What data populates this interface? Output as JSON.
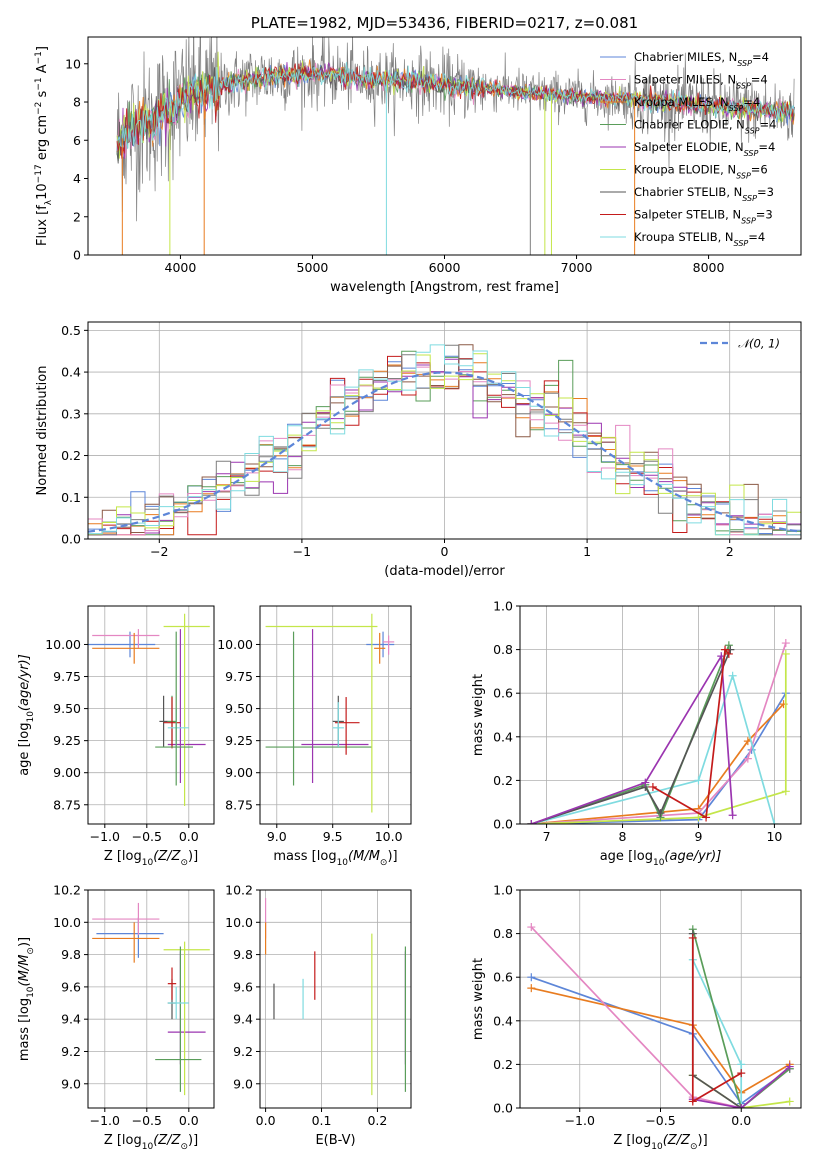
{
  "palette": [
    "#5d86d8",
    "#e87c20",
    "#5a9d5a",
    "#c41b1b",
    "#9b35b0",
    "#8c5a46",
    "#e487c2",
    "#7f7f7f",
    "#c4e64a",
    "#7fdbe0"
  ],
  "chart_data": [
    {
      "id": "spectrum",
      "type": "line",
      "title": "PLATE=1982, MJD=53436, FIBERID=0217, z=0.081",
      "xlabel": "wavelength [Angstrom, rest frame]",
      "ylabel": "Flux [f",
      "ylabel_sub": "λ",
      "ylabel_rest": "10",
      "ylabel_sup1": "−17",
      "ylabel_mid": " erg cm",
      "ylabel_sup2": "−2",
      "ylabel_mid2": " s",
      "ylabel_sup3": "−1",
      "ylabel_end": " A",
      "ylabel_sup4": "−1",
      "ylabel_close": "]",
      "xlim": [
        3300,
        8700
      ],
      "ylim": [
        0,
        11.4
      ],
      "xticks": [
        "4000",
        "5000",
        "6000",
        "7000",
        "8000"
      ],
      "yticks": [
        "0",
        "2",
        "4",
        "6",
        "8",
        "10"
      ],
      "grid": false,
      "legend_position": "top-right",
      "continuum": {
        "x": [
          3520,
          3600,
          3700,
          3800,
          3900,
          4000,
          4100,
          4200,
          4300,
          4400,
          4500,
          4600,
          4800,
          5000,
          5200,
          5400,
          5600,
          5800,
          6000,
          6200,
          6400,
          6600,
          6800,
          7000,
          7200,
          7400,
          7600,
          7800,
          8000,
          8200,
          8400,
          8650
        ],
        "y": [
          5.8,
          6.4,
          6.8,
          7.0,
          7.6,
          8.0,
          8.4,
          8.5,
          8.7,
          9.0,
          9.2,
          9.3,
          9.4,
          9.5,
          9.4,
          9.2,
          9.1,
          9.1,
          8.9,
          8.8,
          8.7,
          8.5,
          8.4,
          8.3,
          8.2,
          8.2,
          8.0,
          7.9,
          7.8,
          7.7,
          7.6,
          7.4
        ]
      },
      "series": [
        {
          "name": "Chabrier MILES, N",
          "sub": "SSP",
          "suffix": "=4",
          "color": "#5d86d8"
        },
        {
          "name": "Salpeter MILES, N",
          "sub": "SSP",
          "suffix": "=4",
          "color": "#e487c2"
        },
        {
          "name": "Kroupa MILES, N",
          "sub": "SSP",
          "suffix": "=4",
          "color": "#e87c20"
        },
        {
          "name": "Chabrier ELODIE, N",
          "sub": "SSP",
          "suffix": "=4",
          "color": "#5a9d5a"
        },
        {
          "name": "Salpeter ELODIE, N",
          "sub": "SSP",
          "suffix": "=4",
          "color": "#9b35b0"
        },
        {
          "name": "Kroupa ELODIE, N",
          "sub": "SSP",
          "suffix": "=6",
          "color": "#c4e64a"
        },
        {
          "name": "Chabrier STELIB, N",
          "sub": "SSP",
          "suffix": "=3",
          "color": "#555555"
        },
        {
          "name": "Salpeter STELIB, N",
          "sub": "SSP",
          "suffix": "=3",
          "color": "#c41b1b"
        },
        {
          "name": "Kroupa STELIB, N",
          "sub": "SSP",
          "suffix": "=4",
          "color": "#7fdbe0"
        }
      ]
    },
    {
      "id": "residuals",
      "type": "histogram",
      "xlabel": "(data-model)/error",
      "ylabel": "Normed distribution",
      "xlim": [
        -2.5,
        2.5
      ],
      "ylim": [
        0,
        0.52
      ],
      "xticks": [
        "−2",
        "−1",
        "0",
        "1",
        "2"
      ],
      "yticks": [
        "0.0",
        "0.1",
        "0.2",
        "0.3",
        "0.4",
        "0.5"
      ],
      "grid": true,
      "legend": "𝒩(0, 1)",
      "legend_position": "top-right",
      "bin_width": 0.1
    },
    {
      "id": "age_vs_Z",
      "type": "errorbar",
      "xlabel": "Z [log",
      "xlabel_sub": "10",
      "xlabel_rest": "(Z/Z",
      "xlabel_sun": "⊙",
      "xlabel_close": ")]",
      "ylabel": "age  [log",
      "ylabel_sub": "10",
      "ylabel_rest": "(age/yr)]",
      "xlim": [
        -1.2,
        0.3
      ],
      "ylim": [
        8.6,
        10.3
      ],
      "xticks": [
        "−1.0",
        "−0.5",
        "0.0"
      ],
      "yticks": [
        "8.75",
        "9.00",
        "9.25",
        "9.50",
        "9.75",
        "10.00"
      ],
      "grid": true,
      "points": [
        {
          "x": -0.7,
          "y": 10.0,
          "xerr": [
            0.5,
            0.3
          ],
          "yerr": [
            0.1,
            0.1
          ],
          "c": "#5d86d8"
        },
        {
          "x": -0.6,
          "y": 10.07,
          "xerr": [
            0.55,
            0.25
          ],
          "yerr": [
            0.1,
            0.05
          ],
          "c": "#e487c2"
        },
        {
          "x": -0.65,
          "y": 9.97,
          "xerr": [
            0.5,
            0.3
          ],
          "yerr": [
            0.12,
            0.12
          ],
          "c": "#e87c20"
        },
        {
          "x": -0.2,
          "y": 9.4,
          "xerr": [
            0.05,
            0.05
          ],
          "yerr": [
            0.2,
            0.2
          ],
          "c": "#5a9d5a"
        },
        {
          "x": -0.1,
          "y": 9.22,
          "xerr": [
            0.15,
            0.3
          ],
          "yerr": [
            0.3,
            0.9
          ],
          "c": "#9b35b0"
        },
        {
          "x": -0.05,
          "y": 10.14,
          "xerr": [
            0.25,
            0.3
          ],
          "yerr": [
            1.4,
            0.1
          ],
          "c": "#c4e64a"
        },
        {
          "x": -0.3,
          "y": 9.4,
          "xerr": [
            0.05,
            0.05
          ],
          "yerr": [
            0.2,
            0.2
          ],
          "c": "#555555"
        },
        {
          "x": -0.2,
          "y": 9.39,
          "xerr": [
            0.1,
            0.1
          ],
          "yerr": [
            0.2,
            0.2
          ],
          "c": "#c41b1b"
        },
        {
          "x": -0.15,
          "y": 9.35,
          "xerr": [
            0.1,
            0.15
          ],
          "yerr": [
            0.15,
            0.15
          ],
          "c": "#7fdbe0"
        },
        {
          "x": -0.15,
          "y": 9.2,
          "xerr": [
            0.25,
            0.2
          ],
          "yerr": [
            0.3,
            0.9
          ],
          "c": "#5a9d5a"
        }
      ]
    },
    {
      "id": "age_vs_mass",
      "type": "errorbar",
      "xlabel": "mass [log",
      "xlabel_sub": "10",
      "xlabel_rest": "(M/M",
      "xlabel_sun": "⊙",
      "xlabel_close": ")]",
      "xlim": [
        8.85,
        10.2
      ],
      "ylim": [
        8.6,
        10.3
      ],
      "xticks": [
        "9.0",
        "9.5",
        "10.0"
      ],
      "yticks": [
        "8.75",
        "9.00",
        "9.25",
        "9.50",
        "9.75",
        "10.00"
      ],
      "grid": true,
      "points": [
        {
          "x": 9.95,
          "y": 10.0,
          "xerr": [
            0.15,
            0.1
          ],
          "yerr": [
            0.1,
            0.1
          ],
          "c": "#5d86d8"
        },
        {
          "x": 10.0,
          "y": 10.02,
          "xerr": [
            0.05,
            0.05
          ],
          "yerr": [
            0.1,
            0.05
          ],
          "c": "#e487c2"
        },
        {
          "x": 9.92,
          "y": 9.97,
          "xerr": [
            0.05,
            0.05
          ],
          "yerr": [
            0.12,
            0.12
          ],
          "c": "#e87c20"
        },
        {
          "x": 9.15,
          "y": 9.2,
          "xerr": [
            0.25,
            0.7
          ],
          "yerr": [
            0.3,
            0.9
          ],
          "c": "#5a9d5a"
        },
        {
          "x": 9.32,
          "y": 9.22,
          "xerr": [
            0.1,
            0.5
          ],
          "yerr": [
            0.3,
            0.9
          ],
          "c": "#9b35b0"
        },
        {
          "x": 9.85,
          "y": 10.14,
          "xerr": [
            0.95,
            0.05
          ],
          "yerr": [
            1.45,
            0.1
          ],
          "c": "#c4e64a"
        },
        {
          "x": 9.55,
          "y": 9.4,
          "xerr": [
            0.05,
            0.05
          ],
          "yerr": [
            0.2,
            0.2
          ],
          "c": "#555555"
        },
        {
          "x": 9.62,
          "y": 9.39,
          "xerr": [
            0.1,
            0.12
          ],
          "yerr": [
            0.25,
            0.2
          ],
          "c": "#c41b1b"
        },
        {
          "x": 9.55,
          "y": 9.35,
          "xerr": [
            0.05,
            0.05
          ],
          "yerr": [
            0.15,
            0.2
          ],
          "c": "#7fdbe0"
        }
      ]
    },
    {
      "id": "weights_vs_age",
      "type": "line",
      "xlabel": "age  [log",
      "xlabel_sub": "10",
      "xlabel_rest": "(age/yr)]",
      "ylabel": "mass weight",
      "xlim": [
        6.65,
        10.35
      ],
      "ylim": [
        0,
        1
      ],
      "xticks": [
        "7",
        "8",
        "9",
        "10"
      ],
      "yticks": [
        "0.0",
        "0.2",
        "0.4",
        "0.6",
        "0.8",
        "1.0"
      ],
      "grid": true,
      "series": [
        {
          "c": "#5d86d8",
          "x": [
            6.8,
            9.0,
            9.7,
            10.15
          ],
          "y": [
            0.0,
            0.02,
            0.34,
            0.6
          ]
        },
        {
          "c": "#e87c20",
          "x": [
            6.8,
            9.0,
            9.65,
            10.12
          ],
          "y": [
            0.0,
            0.07,
            0.38,
            0.55
          ]
        },
        {
          "c": "#e487c2",
          "x": [
            6.8,
            9.0,
            9.65,
            10.15
          ],
          "y": [
            0.0,
            0.05,
            0.3,
            0.83
          ]
        },
        {
          "c": "#c4e64a",
          "x": [
            6.8,
            9.0,
            10.15,
            10.15
          ],
          "y": [
            0.0,
            0.03,
            0.15,
            0.78
          ]
        },
        {
          "c": "#7fdbe0",
          "x": [
            6.8,
            9.0,
            9.45,
            10.0
          ],
          "y": [
            0.0,
            0.2,
            0.68,
            0.0
          ]
        },
        {
          "c": "#5a9d5a",
          "x": [
            6.8,
            8.3,
            8.5,
            9.4
          ],
          "y": [
            0.0,
            0.18,
            0.03,
            0.82
          ]
        },
        {
          "c": "#555555",
          "x": [
            6.8,
            8.3,
            8.5,
            9.42
          ],
          "y": [
            0.0,
            0.17,
            0.05,
            0.8
          ]
        },
        {
          "c": "#9b35b0",
          "x": [
            6.8,
            8.3,
            9.3,
            9.45
          ],
          "y": [
            0.0,
            0.19,
            0.77,
            0.04
          ]
        },
        {
          "c": "#c41b1b",
          "x": [
            8.4,
            9.1,
            9.35,
            9.4
          ],
          "y": [
            0.17,
            0.03,
            0.8,
            0.78
          ]
        }
      ]
    },
    {
      "id": "mass_vs_Z",
      "type": "errorbar",
      "xlabel": "Z [log",
      "xlabel_sub": "10",
      "xlabel_rest": "(Z/Z",
      "xlabel_sun": "⊙",
      "xlabel_close": ")]",
      "ylabel": "mass [log",
      "ylabel_sub": "10",
      "ylabel_rest": "(M/M",
      "ylabel_sun": "⊙",
      "ylabel_close": ")]",
      "xlim": [
        -1.2,
        0.3
      ],
      "ylim": [
        8.85,
        10.2
      ],
      "xticks": [
        "−1.0",
        "−0.5",
        "0.0"
      ],
      "yticks": [
        "9.0",
        "9.2",
        "9.4",
        "9.6",
        "9.8",
        "10.0",
        "10.2"
      ],
      "grid": true,
      "points": [
        {
          "x": -0.6,
          "y": 9.93,
          "xerr": [
            0.5,
            0.3
          ],
          "yerr": [
            0.15,
            0.1
          ],
          "c": "#5d86d8"
        },
        {
          "x": -0.6,
          "y": 10.02,
          "xerr": [
            0.55,
            0.25
          ],
          "yerr": [
            0.1,
            0.1
          ],
          "c": "#e487c2"
        },
        {
          "x": -0.65,
          "y": 9.9,
          "xerr": [
            0.5,
            0.3
          ],
          "yerr": [
            0.15,
            0.1
          ],
          "c": "#e87c20"
        },
        {
          "x": -0.2,
          "y": 9.5,
          "xerr": [
            0.05,
            0.05
          ],
          "yerr": [
            0.1,
            0.15
          ],
          "c": "#555555"
        },
        {
          "x": -0.1,
          "y": 9.32,
          "xerr": [
            0.15,
            0.3
          ],
          "yerr": [
            0.2,
            0.5
          ],
          "c": "#9b35b0"
        },
        {
          "x": -0.05,
          "y": 9.83,
          "xerr": [
            0.25,
            0.3
          ],
          "yerr": [
            0.9,
            0.05
          ],
          "c": "#c4e64a"
        },
        {
          "x": -0.1,
          "y": 9.15,
          "xerr": [
            0.3,
            0.25
          ],
          "yerr": [
            0.2,
            0.7
          ],
          "c": "#5a9d5a"
        },
        {
          "x": -0.2,
          "y": 9.62,
          "xerr": [
            0.05,
            0.05
          ],
          "yerr": [
            0.1,
            0.1
          ],
          "c": "#c41b1b"
        },
        {
          "x": -0.15,
          "y": 9.5,
          "xerr": [
            0.1,
            0.15
          ],
          "yerr": [
            0.1,
            0.1
          ],
          "c": "#7fdbe0"
        }
      ]
    },
    {
      "id": "mass_vs_ebv",
      "type": "errorbar",
      "xlabel": "E(B-V)",
      "xlim": [
        -0.01,
        0.26
      ],
      "ylim": [
        8.85,
        10.2
      ],
      "xticks": [
        "0.0",
        "0.1",
        "0.2"
      ],
      "yticks": [
        "9.0",
        "9.2",
        "9.4",
        "9.6",
        "9.8",
        "10.0",
        "10.2"
      ],
      "grid": true,
      "points": [
        {
          "x": 0.0,
          "y": 10.0,
          "xerr": [
            0,
            0
          ],
          "yerr": [
            0.1,
            0.15
          ],
          "c": "#e487c2"
        },
        {
          "x": 0.0,
          "y": 9.9,
          "xerr": [
            0,
            0
          ],
          "yerr": [
            0.1,
            0.1
          ],
          "c": "#e87c20"
        },
        {
          "x": 0.015,
          "y": 9.5,
          "xerr": [
            0,
            0
          ],
          "yerr": [
            0.1,
            0.12
          ],
          "c": "#555555"
        },
        {
          "x": 0.067,
          "y": 9.5,
          "xerr": [
            0,
            0
          ],
          "yerr": [
            0.1,
            0.15
          ],
          "c": "#7fdbe0"
        },
        {
          "x": 0.088,
          "y": 9.62,
          "xerr": [
            0,
            0
          ],
          "yerr": [
            0.1,
            0.2
          ],
          "c": "#c41b1b"
        },
        {
          "x": 0.19,
          "y": 9.83,
          "xerr": [
            0,
            0
          ],
          "yerr": [
            0.9,
            0.1
          ],
          "c": "#c4e64a"
        },
        {
          "x": 0.25,
          "y": 9.32,
          "xerr": [
            0,
            0
          ],
          "yerr": [
            0.2,
            0.5
          ],
          "c": "#9b35b0"
        },
        {
          "x": 0.25,
          "y": 9.15,
          "xerr": [
            0,
            0
          ],
          "yerr": [
            0.2,
            0.7
          ],
          "c": "#5a9d5a"
        }
      ]
    },
    {
      "id": "weights_vs_Z",
      "type": "line",
      "xlabel": "Z [log",
      "xlabel_sub": "10",
      "xlabel_rest": "(Z/Z",
      "xlabel_sun": "⊙",
      "xlabel_close": ")]",
      "ylabel": "mass weight",
      "xlim": [
        -1.37,
        0.37
      ],
      "ylim": [
        0,
        1
      ],
      "xticks": [
        "−1.0",
        "−0.5",
        "0.0"
      ],
      "yticks": [
        "0.0",
        "0.2",
        "0.4",
        "0.6",
        "0.8",
        "1.0"
      ],
      "grid": true,
      "series": [
        {
          "c": "#5d86d8",
          "x": [
            -1.3,
            -0.3,
            0.0,
            0.3
          ],
          "y": [
            0.6,
            0.34,
            0.02,
            0.18
          ]
        },
        {
          "c": "#e87c20",
          "x": [
            -1.3,
            -0.3,
            0.0,
            0.3
          ],
          "y": [
            0.55,
            0.38,
            0.07,
            0.2
          ]
        },
        {
          "c": "#e487c2",
          "x": [
            -1.3,
            -0.3,
            0.0,
            0.3
          ],
          "y": [
            0.83,
            0.05,
            0.0,
            0.18
          ]
        },
        {
          "c": "#c4e64a",
          "x": [
            -0.3,
            0.0,
            0.3
          ],
          "y": [
            0.15,
            0.0,
            0.03
          ]
        },
        {
          "c": "#7fdbe0",
          "x": [
            -0.3,
            0.0,
            0.0
          ],
          "y": [
            0.68,
            0.2,
            0.0
          ]
        },
        {
          "c": "#5a9d5a",
          "x": [
            -0.3,
            0.0,
            0.3
          ],
          "y": [
            0.82,
            0.0,
            0.18
          ]
        },
        {
          "c": "#555555",
          "x": [
            -0.3,
            -0.3,
            0.0
          ],
          "y": [
            0.8,
            0.15,
            0.0
          ]
        },
        {
          "c": "#9b35b0",
          "x": [
            -0.3,
            0.0,
            0.3
          ],
          "y": [
            0.04,
            0.0,
            0.19
          ]
        },
        {
          "c": "#c41b1b",
          "x": [
            -0.3,
            -0.3,
            0.0
          ],
          "y": [
            0.78,
            0.03,
            0.16
          ]
        }
      ]
    }
  ]
}
